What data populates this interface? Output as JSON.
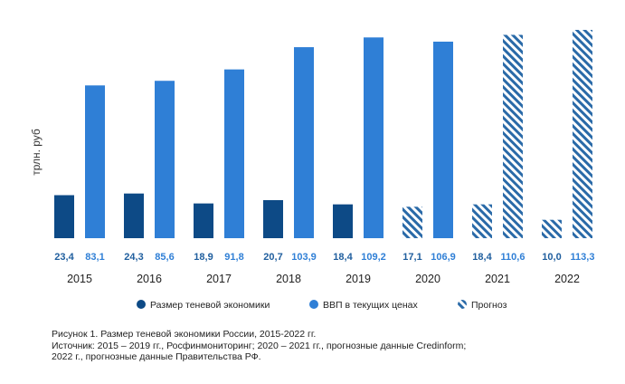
{
  "chart_data": {
    "type": "bar",
    "ylabel": "трлн. руб",
    "categories": [
      "2015",
      "2016",
      "2017",
      "2018",
      "2019",
      "2020",
      "2021",
      "2022"
    ],
    "series": [
      {
        "name": "Размер теневой экономики",
        "values": [
          23.4,
          24.3,
          18.9,
          20.7,
          18.4,
          17.1,
          18.4,
          10.0
        ],
        "labels": [
          "23,4",
          "24,3",
          "18,9",
          "20,7",
          "18,4",
          "17,1",
          "18,4",
          "10,0"
        ],
        "forecast": [
          false,
          false,
          false,
          false,
          false,
          true,
          true,
          true
        ]
      },
      {
        "name": "ВВП в текущих ценах",
        "values": [
          83.1,
          85.6,
          91.8,
          103.9,
          109.2,
          106.9,
          110.6,
          113.3
        ],
        "labels": [
          "83,1",
          "85,6",
          "91,8",
          "103,9",
          "109,2",
          "106,9",
          "110,6",
          "113,3"
        ],
        "forecast": [
          false,
          false,
          false,
          false,
          false,
          false,
          true,
          true
        ]
      }
    ],
    "legend": [
      "Размер теневой экономики",
      "ВВП в текущих ценах",
      "Прогноз"
    ],
    "legend_position": "bottom",
    "grid": false,
    "colors": {
      "shadow": "#0d4a86",
      "gdp": "#2f7fd6",
      "forecast": "#2a6aa8"
    }
  },
  "caption": [
    "Рисунок 1. Размер теневой экономики России, 2015-2022 гг.",
    "Источник: 2015 – 2019 гг., Росфинмониторинг; 2020 – 2021 гг., прогнозные данные Credinform;",
    "2022 г., прогнозные данные Правительства РФ."
  ]
}
